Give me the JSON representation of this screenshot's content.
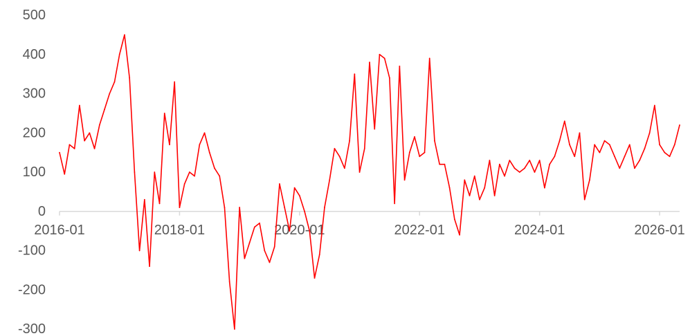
{
  "chart_data": {
    "type": "line",
    "title": "",
    "xlabel": "",
    "ylabel": "",
    "x_ticks": [
      "2016-01",
      "2018-01",
      "2020-01",
      "2022-01",
      "2024-01",
      "2026-01"
    ],
    "y_ticks": [
      "500",
      "400",
      "300",
      "200",
      "100",
      "0",
      "-100",
      "-200",
      "-300"
    ],
    "ylim": [
      -300,
      500
    ],
    "xlim": [
      "2016-01",
      "2026-05"
    ],
    "grid": false,
    "legend": "none",
    "series": [
      {
        "color": "#ff0000",
        "x": [
          "2016-01",
          "2016-02",
          "2016-03",
          "2016-04",
          "2016-05",
          "2016-06",
          "2016-07",
          "2016-08",
          "2016-09",
          "2016-10",
          "2016-11",
          "2016-12",
          "2017-01",
          "2017-02",
          "2017-03",
          "2017-04",
          "2017-05",
          "2017-06",
          "2017-07",
          "2017-08",
          "2017-09",
          "2017-10",
          "2017-11",
          "2017-12",
          "2018-01",
          "2018-02",
          "2018-03",
          "2018-04",
          "2018-05",
          "2018-06",
          "2018-07",
          "2018-08",
          "2018-09",
          "2018-10",
          "2018-11",
          "2018-12",
          "2019-01",
          "2019-02",
          "2019-03",
          "2019-04",
          "2019-05",
          "2019-06",
          "2019-07",
          "2019-08",
          "2019-09",
          "2019-10",
          "2019-11",
          "2019-12",
          "2020-01",
          "2020-02",
          "2020-03",
          "2020-04",
          "2020-05",
          "2020-06",
          "2020-07",
          "2020-08",
          "2020-09",
          "2020-10",
          "2020-11",
          "2020-12",
          "2021-01",
          "2021-02",
          "2021-03",
          "2021-04",
          "2021-05",
          "2021-06",
          "2021-07",
          "2021-08",
          "2021-09",
          "2021-10",
          "2021-11",
          "2021-12",
          "2022-01",
          "2022-02",
          "2022-03",
          "2022-04",
          "2022-05",
          "2022-06",
          "2022-07",
          "2022-08",
          "2022-09",
          "2022-10",
          "2022-11",
          "2022-12",
          "2023-01",
          "2023-02",
          "2023-03",
          "2023-04",
          "2023-05",
          "2023-06",
          "2023-07",
          "2023-08",
          "2023-09",
          "2023-10",
          "2023-11",
          "2023-12",
          "2024-01",
          "2024-02",
          "2024-03",
          "2024-04",
          "2024-05",
          "2024-06",
          "2024-07",
          "2024-08",
          "2024-09",
          "2024-10",
          "2024-11",
          "2024-12",
          "2025-01",
          "2025-02",
          "2025-03",
          "2025-04",
          "2025-05",
          "2025-06",
          "2025-07",
          "2025-08",
          "2025-09",
          "2025-10",
          "2025-11",
          "2025-12",
          "2026-01",
          "2026-02",
          "2026-03",
          "2026-04",
          "2026-05"
        ],
        "values": [
          150,
          95,
          170,
          160,
          270,
          180,
          200,
          160,
          220,
          260,
          300,
          330,
          400,
          450,
          340,
          100,
          -100,
          30,
          -140,
          100,
          20,
          250,
          170,
          330,
          10,
          70,
          100,
          90,
          170,
          200,
          150,
          110,
          90,
          10,
          -180,
          -300,
          10,
          -120,
          -80,
          -40,
          -30,
          -100,
          -130,
          -90,
          70,
          10,
          -50,
          60,
          40,
          0,
          -50,
          -170,
          -110,
          10,
          80,
          160,
          140,
          110,
          180,
          350,
          100,
          160,
          380,
          210,
          400,
          390,
          340,
          20,
          370,
          80,
          150,
          190,
          140,
          150,
          390,
          180,
          120,
          120,
          60,
          -20,
          -60,
          80,
          40,
          90,
          30,
          60,
          130,
          40,
          120,
          90,
          130,
          110,
          100,
          110,
          130,
          100,
          130,
          60,
          120,
          140,
          180,
          230,
          170,
          140,
          200,
          30,
          80,
          170,
          150,
          180,
          170,
          140,
          110,
          140,
          170,
          110,
          130,
          160,
          200,
          270,
          170,
          150,
          140,
          170,
          220
        ]
      }
    ]
  }
}
